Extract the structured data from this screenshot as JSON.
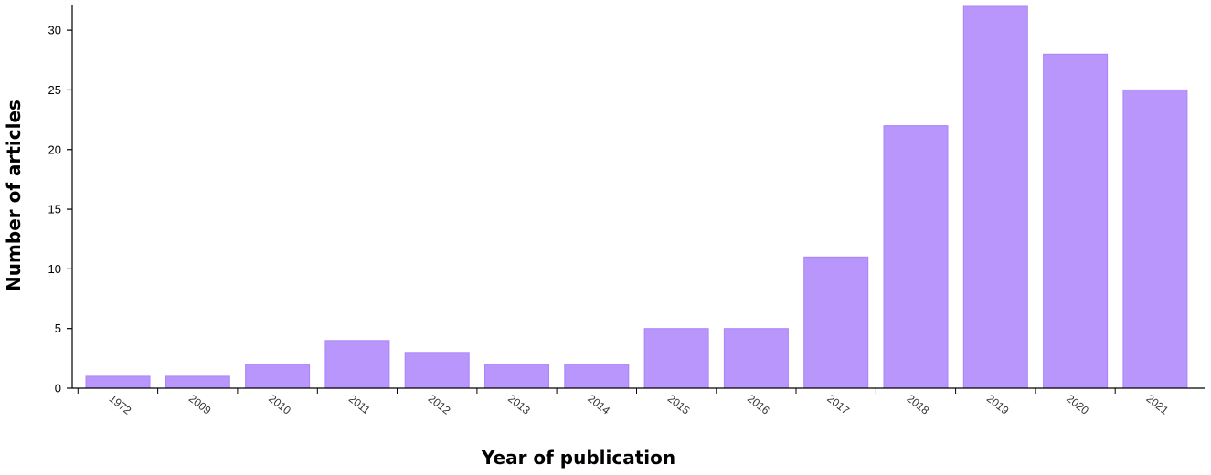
{
  "colors": {
    "bar": "#b896fc",
    "bar_stroke": "#a985f5",
    "axis": "#000000"
  },
  "chart_data": {
    "type": "bar",
    "title": "",
    "xlabel": "Year of publication",
    "ylabel": "Number of articles",
    "categories": [
      "1972",
      "2009",
      "2010",
      "2011",
      "2012",
      "2013",
      "2014",
      "2015",
      "2016",
      "2017",
      "2018",
      "2019",
      "2020",
      "2021"
    ],
    "values": [
      1,
      1,
      2,
      4,
      3,
      2,
      2,
      5,
      5,
      11,
      22,
      32,
      28,
      25
    ],
    "ylim": [
      0,
      32
    ],
    "yticks": [
      0,
      5,
      10,
      15,
      20,
      25,
      30
    ],
    "grid": false,
    "legend": "none"
  }
}
